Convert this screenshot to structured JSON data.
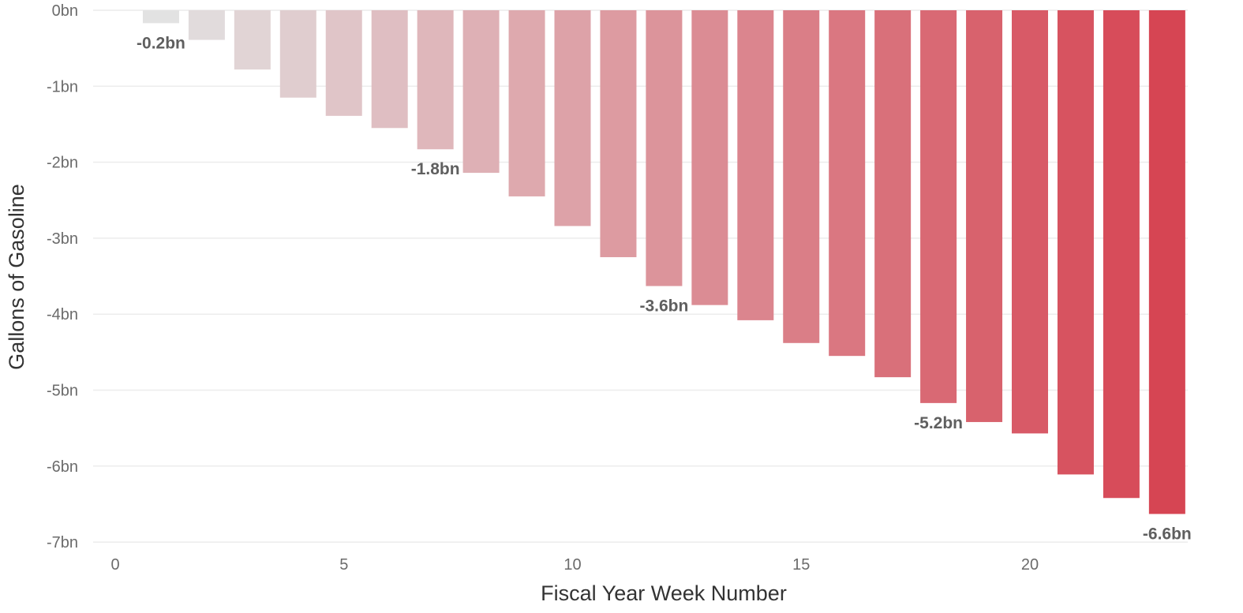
{
  "chart_data": {
    "type": "bar",
    "title": "",
    "xlabel": "Fiscal Year Week Number",
    "ylabel": "Gallons of Gasoline",
    "x": [
      1,
      2,
      3,
      4,
      5,
      6,
      7,
      8,
      9,
      10,
      11,
      12,
      13,
      14,
      15,
      16,
      17,
      18,
      19,
      20,
      21,
      22,
      23
    ],
    "values": [
      -0.17,
      -0.39,
      -0.78,
      -1.15,
      -1.39,
      -1.55,
      -1.83,
      -2.14,
      -2.45,
      -2.84,
      -3.25,
      -3.63,
      -3.88,
      -4.08,
      -4.38,
      -4.55,
      -4.83,
      -5.17,
      -5.42,
      -5.57,
      -6.11,
      -6.42,
      -6.63
    ],
    "xlim": [
      0,
      24
    ],
    "ylim": [
      -7,
      0
    ],
    "xticks": [
      0,
      5,
      10,
      15,
      20
    ],
    "yticks": [
      0,
      -1,
      -2,
      -3,
      -4,
      -5,
      -6,
      -7
    ],
    "xtick_labels": [
      "0",
      "5",
      "10",
      "15",
      "20"
    ],
    "ytick_labels": [
      "0bn",
      "-1bn",
      "-2bn",
      "-3bn",
      "-4bn",
      "-5bn",
      "-6bn",
      "-7bn"
    ],
    "grid": true,
    "legend": "none",
    "color_start": "#e2e2e2",
    "color_end": "#d64553",
    "annotations": [
      {
        "x": 1,
        "label": "-0.2bn"
      },
      {
        "x": 7,
        "label": "-1.8bn"
      },
      {
        "x": 12,
        "label": "-3.6bn"
      },
      {
        "x": 18,
        "label": "-5.2bn"
      },
      {
        "x": 23,
        "label": "-6.6bn"
      }
    ]
  }
}
